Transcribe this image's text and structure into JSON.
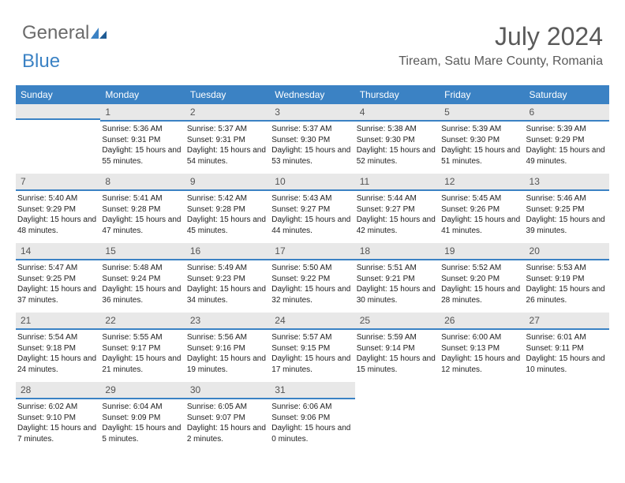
{
  "brand": {
    "general": "General",
    "blue": "Blue"
  },
  "title": "July 2024",
  "location": "Tiream, Satu Mare County, Romania",
  "colors": {
    "header_bg": "#3b82c4",
    "header_fg": "#ffffff",
    "daynum_bg": "#e8e8e8",
    "daynum_border": "#3b82c4",
    "text": "#222222",
    "title_color": "#5a5a5a"
  },
  "weekdays": [
    "Sunday",
    "Monday",
    "Tuesday",
    "Wednesday",
    "Thursday",
    "Friday",
    "Saturday"
  ],
  "weeks": [
    [
      null,
      {
        "n": "1",
        "sr": "5:36 AM",
        "ss": "9:31 PM",
        "dl": "15 hours and 55 minutes."
      },
      {
        "n": "2",
        "sr": "5:37 AM",
        "ss": "9:31 PM",
        "dl": "15 hours and 54 minutes."
      },
      {
        "n": "3",
        "sr": "5:37 AM",
        "ss": "9:30 PM",
        "dl": "15 hours and 53 minutes."
      },
      {
        "n": "4",
        "sr": "5:38 AM",
        "ss": "9:30 PM",
        "dl": "15 hours and 52 minutes."
      },
      {
        "n": "5",
        "sr": "5:39 AM",
        "ss": "9:30 PM",
        "dl": "15 hours and 51 minutes."
      },
      {
        "n": "6",
        "sr": "5:39 AM",
        "ss": "9:29 PM",
        "dl": "15 hours and 49 minutes."
      }
    ],
    [
      {
        "n": "7",
        "sr": "5:40 AM",
        "ss": "9:29 PM",
        "dl": "15 hours and 48 minutes."
      },
      {
        "n": "8",
        "sr": "5:41 AM",
        "ss": "9:28 PM",
        "dl": "15 hours and 47 minutes."
      },
      {
        "n": "9",
        "sr": "5:42 AM",
        "ss": "9:28 PM",
        "dl": "15 hours and 45 minutes."
      },
      {
        "n": "10",
        "sr": "5:43 AM",
        "ss": "9:27 PM",
        "dl": "15 hours and 44 minutes."
      },
      {
        "n": "11",
        "sr": "5:44 AM",
        "ss": "9:27 PM",
        "dl": "15 hours and 42 minutes."
      },
      {
        "n": "12",
        "sr": "5:45 AM",
        "ss": "9:26 PM",
        "dl": "15 hours and 41 minutes."
      },
      {
        "n": "13",
        "sr": "5:46 AM",
        "ss": "9:25 PM",
        "dl": "15 hours and 39 minutes."
      }
    ],
    [
      {
        "n": "14",
        "sr": "5:47 AM",
        "ss": "9:25 PM",
        "dl": "15 hours and 37 minutes."
      },
      {
        "n": "15",
        "sr": "5:48 AM",
        "ss": "9:24 PM",
        "dl": "15 hours and 36 minutes."
      },
      {
        "n": "16",
        "sr": "5:49 AM",
        "ss": "9:23 PM",
        "dl": "15 hours and 34 minutes."
      },
      {
        "n": "17",
        "sr": "5:50 AM",
        "ss": "9:22 PM",
        "dl": "15 hours and 32 minutes."
      },
      {
        "n": "18",
        "sr": "5:51 AM",
        "ss": "9:21 PM",
        "dl": "15 hours and 30 minutes."
      },
      {
        "n": "19",
        "sr": "5:52 AM",
        "ss": "9:20 PM",
        "dl": "15 hours and 28 minutes."
      },
      {
        "n": "20",
        "sr": "5:53 AM",
        "ss": "9:19 PM",
        "dl": "15 hours and 26 minutes."
      }
    ],
    [
      {
        "n": "21",
        "sr": "5:54 AM",
        "ss": "9:18 PM",
        "dl": "15 hours and 24 minutes."
      },
      {
        "n": "22",
        "sr": "5:55 AM",
        "ss": "9:17 PM",
        "dl": "15 hours and 21 minutes."
      },
      {
        "n": "23",
        "sr": "5:56 AM",
        "ss": "9:16 PM",
        "dl": "15 hours and 19 minutes."
      },
      {
        "n": "24",
        "sr": "5:57 AM",
        "ss": "9:15 PM",
        "dl": "15 hours and 17 minutes."
      },
      {
        "n": "25",
        "sr": "5:59 AM",
        "ss": "9:14 PM",
        "dl": "15 hours and 15 minutes."
      },
      {
        "n": "26",
        "sr": "6:00 AM",
        "ss": "9:13 PM",
        "dl": "15 hours and 12 minutes."
      },
      {
        "n": "27",
        "sr": "6:01 AM",
        "ss": "9:11 PM",
        "dl": "15 hours and 10 minutes."
      }
    ],
    [
      {
        "n": "28",
        "sr": "6:02 AM",
        "ss": "9:10 PM",
        "dl": "15 hours and 7 minutes."
      },
      {
        "n": "29",
        "sr": "6:04 AM",
        "ss": "9:09 PM",
        "dl": "15 hours and 5 minutes."
      },
      {
        "n": "30",
        "sr": "6:05 AM",
        "ss": "9:07 PM",
        "dl": "15 hours and 2 minutes."
      },
      {
        "n": "31",
        "sr": "6:06 AM",
        "ss": "9:06 PM",
        "dl": "15 hours and 0 minutes."
      },
      null,
      null,
      null
    ]
  ],
  "labels": {
    "sunrise": "Sunrise:",
    "sunset": "Sunset:",
    "daylight": "Daylight:"
  }
}
